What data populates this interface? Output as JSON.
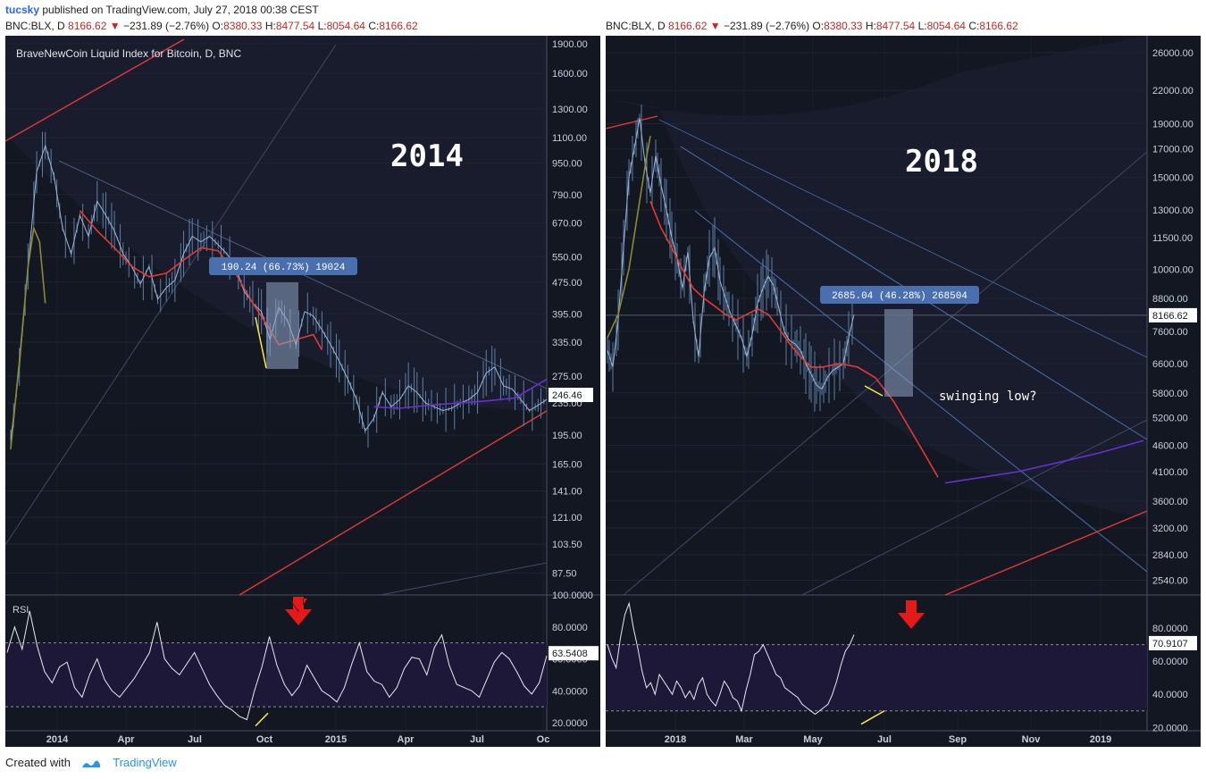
{
  "header": {
    "user": "tucsky",
    "published": "published on TradingView.com, July 27, 2018 00:38 CEST"
  },
  "symbol_bar": {
    "symbol": "BNC:BLX, D",
    "price": "8166.62",
    "change": "−231.89 (−2.76%)",
    "o": "8380.33",
    "h": "8477.54",
    "l": "8054.64",
    "c": "8166.62"
  },
  "footer": {
    "created": "Created with",
    "brand": "TradingView"
  },
  "colors": {
    "background": "#131722",
    "candle": "#5d7fa8",
    "red_line": "#e53935",
    "olive_line": "#8d8a34",
    "purple_line": "#6a2fd0",
    "blue_line": "#4a6fae",
    "rsi_band": "#1e1838",
    "highlight_box": "#90a4c4",
    "yellow": "#ffeb3b",
    "arrow": "#e61919",
    "label_box": "#4a6fae"
  },
  "chart_data": [
    {
      "type": "line",
      "subtype": "candlestick",
      "title": "BraveNewCoin Liquid Index for Bitcoin, D, BNC",
      "annotation": "2014",
      "measure_label": "190.24 (66.73%) 19024",
      "y_scale": "log",
      "ylim": [
        77,
        1990
      ],
      "y_ticks": [
        "1900.00",
        "1600.00",
        "1300.00",
        "1100.00",
        "950.00",
        "790.00",
        "670.00",
        "550.00",
        "475.00",
        "395.00",
        "335.00",
        "275.00",
        "235.00",
        "195.00",
        "165.00",
        "141.00",
        "121.00",
        "103.50",
        "87.50"
      ],
      "x_ticks": [
        "2014",
        "Apr",
        "Jul",
        "Oct",
        "2015",
        "Apr",
        "Jul",
        "Oc"
      ],
      "last_value": "246.46",
      "price_path": [
        [
          0,
          190
        ],
        [
          3,
          290
        ],
        [
          6,
          520
        ],
        [
          9,
          900
        ],
        [
          12,
          1050
        ],
        [
          15,
          880
        ],
        [
          18,
          650
        ],
        [
          21,
          560
        ],
        [
          24,
          700
        ],
        [
          27,
          620
        ],
        [
          30,
          760
        ],
        [
          33,
          700
        ],
        [
          36,
          640
        ],
        [
          39,
          560
        ],
        [
          42,
          520
        ],
        [
          45,
          470
        ],
        [
          48,
          520
        ],
        [
          51,
          430
        ],
        [
          54,
          460
        ],
        [
          57,
          480
        ],
        [
          60,
          560
        ],
        [
          63,
          620
        ],
        [
          66,
          600
        ],
        [
          69,
          620
        ],
        [
          72,
          590
        ],
        [
          75,
          560
        ],
        [
          78,
          520
        ],
        [
          81,
          450
        ],
        [
          84,
          420
        ],
        [
          87,
          400
        ],
        [
          90,
          340
        ],
        [
          93,
          410
        ],
        [
          96,
          380
        ],
        [
          99,
          330
        ],
        [
          102,
          400
        ],
        [
          105,
          390
        ],
        [
          108,
          360
        ],
        [
          111,
          330
        ],
        [
          114,
          300
        ],
        [
          117,
          270
        ],
        [
          120,
          240
        ],
        [
          123,
          200
        ],
        [
          126,
          215
        ],
        [
          129,
          250
        ],
        [
          132,
          230
        ],
        [
          135,
          240
        ],
        [
          138,
          260
        ],
        [
          141,
          250
        ],
        [
          144,
          235
        ],
        [
          147,
          230
        ],
        [
          150,
          225
        ],
        [
          153,
          228
        ],
        [
          156,
          235
        ],
        [
          159,
          240
        ],
        [
          162,
          250
        ],
        [
          165,
          280
        ],
        [
          168,
          290
        ],
        [
          171,
          260
        ],
        [
          174,
          255
        ],
        [
          177,
          240
        ],
        [
          180,
          225
        ],
        [
          183,
          232
        ],
        [
          186,
          240
        ]
      ],
      "x_range_days": [
        0,
        186
      ],
      "red_ma": [
        [
          24,
          720
        ],
        [
          30,
          640
        ],
        [
          36,
          580
        ],
        [
          42,
          520
        ],
        [
          48,
          490
        ],
        [
          54,
          500
        ],
        [
          60,
          540
        ],
        [
          66,
          580
        ],
        [
          72,
          570
        ],
        [
          78,
          500
        ],
        [
          84,
          420
        ],
        [
          90,
          360
        ],
        [
          93,
          330
        ],
        [
          99,
          340
        ],
        [
          105,
          350
        ],
        [
          108,
          320
        ]
      ],
      "olive_ma": [
        [
          0,
          180
        ],
        [
          3,
          300
        ],
        [
          6,
          520
        ],
        [
          8,
          650
        ],
        [
          10,
          600
        ],
        [
          12,
          420
        ]
      ],
      "purple_ma": [
        [
          126,
          230
        ],
        [
          135,
          228
        ],
        [
          145,
          232
        ],
        [
          155,
          235
        ],
        [
          165,
          238
        ],
        [
          175,
          242
        ],
        [
          186,
          270
        ]
      ],
      "rsi": {
        "label": "RSI",
        "last_value": "63.5408",
        "ylim": [
          15,
          100
        ],
        "y_ticks": [
          "100.0000",
          "80.0000",
          "60.0000",
          "40.0000",
          "20.0000"
        ],
        "bands": [
          70,
          30
        ],
        "values": [
          64,
          80,
          66,
          90,
          68,
          52,
          45,
          55,
          58,
          42,
          36,
          50,
          60,
          47,
          40,
          36,
          42,
          48,
          56,
          64,
          83,
          60,
          54,
          50,
          57,
          64,
          54,
          44,
          37,
          31,
          28,
          24,
          22,
          40,
          55,
          74,
          56,
          44,
          37,
          43,
          56,
          48,
          40,
          37,
          33,
          42,
          57,
          70,
          52,
          46,
          44,
          36,
          42,
          54,
          61,
          60,
          50,
          67,
          75,
          56,
          44,
          42,
          40,
          36,
          47,
          58,
          64,
          60,
          52,
          43,
          38,
          45,
          62
        ]
      }
    },
    {
      "type": "line",
      "subtype": "candlestick",
      "title": "",
      "annotation": "2018",
      "measure_label": "2685.04 (46.28%) 268504",
      "side_note": "swinging low?",
      "y_scale": "log",
      "ylim": [
        2380,
        28000
      ],
      "y_ticks": [
        "26000.00",
        "22000.00",
        "19000.00",
        "17000.00",
        "15000.00",
        "13000.00",
        "11500.00",
        "10000.00",
        "8800.00",
        "7600.00",
        "6600.00",
        "5800.00",
        "5200.00",
        "4600.00",
        "4100.00",
        "3600.00",
        "3200.00",
        "2840.00",
        "2540.00"
      ],
      "x_ticks": [
        "2018",
        "Mar",
        "May",
        "Jul",
        "Sep",
        "Nov",
        "2019"
      ],
      "last_value": "8166.62",
      "price_path": [
        [
          0,
          7000
        ],
        [
          3,
          6500
        ],
        [
          6,
          8000
        ],
        [
          9,
          11000
        ],
        [
          12,
          15000
        ],
        [
          15,
          17000
        ],
        [
          18,
          19500
        ],
        [
          21,
          16000
        ],
        [
          24,
          14000
        ],
        [
          27,
          16500
        ],
        [
          30,
          14500
        ],
        [
          33,
          13000
        ],
        [
          36,
          11500
        ],
        [
          39,
          10500
        ],
        [
          42,
          9200
        ],
        [
          45,
          10800
        ],
        [
          48,
          8000
        ],
        [
          51,
          6800
        ],
        [
          54,
          9000
        ],
        [
          57,
          10500
        ],
        [
          60,
          11000
        ],
        [
          63,
          9500
        ],
        [
          66,
          8800
        ],
        [
          69,
          8200
        ],
        [
          72,
          7800
        ],
        [
          75,
          7400
        ],
        [
          78,
          6800
        ],
        [
          81,
          7500
        ],
        [
          84,
          8600
        ],
        [
          87,
          9200
        ],
        [
          90,
          9700
        ],
        [
          93,
          9300
        ],
        [
          96,
          8400
        ],
        [
          99,
          7600
        ],
        [
          102,
          7300
        ],
        [
          105,
          7200
        ],
        [
          108,
          7000
        ],
        [
          111,
          6600
        ],
        [
          114,
          6300
        ],
        [
          117,
          6000
        ],
        [
          120,
          5900
        ],
        [
          123,
          6200
        ],
        [
          126,
          6400
        ],
        [
          129,
          6500
        ],
        [
          132,
          6600
        ],
        [
          135,
          7400
        ],
        [
          138,
          8200
        ]
      ],
      "x_range_days": [
        0,
        300
      ],
      "red_ma": [
        [
          24,
          13500
        ],
        [
          30,
          12000
        ],
        [
          36,
          11000
        ],
        [
          42,
          10000
        ],
        [
          48,
          9200
        ],
        [
          54,
          8800
        ],
        [
          60,
          8500
        ],
        [
          66,
          8200
        ],
        [
          72,
          8000
        ],
        [
          78,
          8200
        ],
        [
          84,
          8400
        ],
        [
          90,
          8200
        ],
        [
          96,
          7700
        ],
        [
          102,
          7200
        ],
        [
          108,
          6800
        ],
        [
          114,
          6500
        ],
        [
          120,
          6500
        ],
        [
          130,
          6600
        ],
        [
          140,
          6500
        ],
        [
          150,
          6200
        ],
        [
          160,
          5600
        ],
        [
          170,
          4900
        ],
        [
          178,
          4400
        ],
        [
          185,
          4000
        ]
      ],
      "olive_ma": [
        [
          0,
          7400
        ],
        [
          6,
          8200
        ],
        [
          12,
          10000
        ],
        [
          18,
          13500
        ],
        [
          22,
          16500
        ],
        [
          24,
          18000
        ]
      ],
      "purple_ma": [
        [
          189,
          3900
        ],
        [
          210,
          4000
        ],
        [
          230,
          4100
        ],
        [
          250,
          4250
        ],
        [
          275,
          4450
        ],
        [
          300,
          4700
        ]
      ],
      "rsi": {
        "label": "",
        "last_value": "70.9107",
        "ylim": [
          18,
          100
        ],
        "y_ticks": [
          "80.0000",
          "60.0000",
          "40.0000",
          "20.0000"
        ],
        "bands": [
          70,
          30
        ],
        "values": [
          70,
          62,
          56,
          74,
          88,
          95,
          80,
          68,
          54,
          44,
          47,
          40,
          52,
          48,
          44,
          40,
          48,
          44,
          38,
          42,
          37,
          46,
          50,
          40,
          36,
          33,
          40,
          48,
          44,
          38,
          36,
          30,
          42,
          52,
          64,
          66,
          70,
          64,
          58,
          52,
          50,
          44,
          42,
          40,
          38,
          34,
          32,
          30,
          28,
          30,
          32,
          34,
          40,
          48,
          58,
          66,
          70,
          76
        ]
      }
    }
  ]
}
